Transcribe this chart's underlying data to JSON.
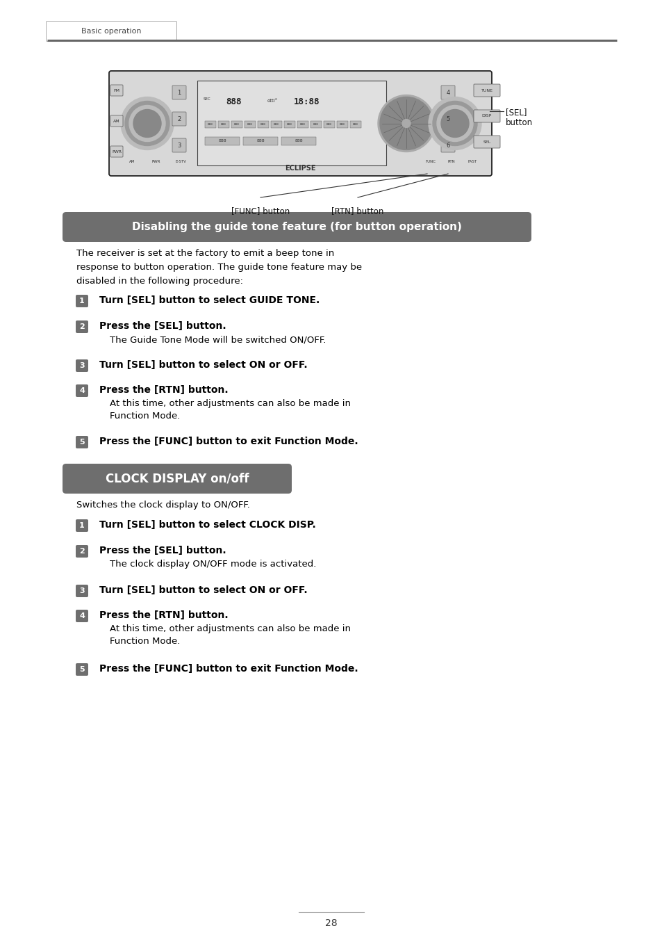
{
  "page_bg": "#ffffff",
  "header_tab_text": "Basic operation",
  "header_tab_bg": "#ffffff",
  "header_tab_border": "#aaaaaa",
  "header_line_color": "#666666",
  "section1_banner_text": "Disabling the guide tone feature (for button operation)",
  "section1_banner_bg": "#6e6e6e",
  "section1_banner_text_color": "#ffffff",
  "section2_banner_text": "CLOCK DISPLAY on/off",
  "section2_banner_bg": "#6e6e6e",
  "section2_banner_text_color": "#ffffff",
  "body_text_color": "#000000",
  "badge_bg": "#6e6e6e",
  "intro1_lines": [
    "The receiver is set at the factory to emit a beep tone in",
    "response to button operation. The guide tone feature may be",
    "disabled in the following procedure:"
  ],
  "steps1": [
    {
      "num": "1",
      "bold": "Turn [SEL] button to select GUIDE TONE.",
      "normal": ""
    },
    {
      "num": "2",
      "bold": "Press the [SEL] button.",
      "normal": "The Guide Tone Mode will be switched ON/OFF."
    },
    {
      "num": "3",
      "bold": "Turn [SEL] button to select ON or OFF.",
      "normal": ""
    },
    {
      "num": "4",
      "bold": "Press the [RTN] button.",
      "normal": "At this time, other adjustments can also be made in\nFunction Mode."
    },
    {
      "num": "5",
      "bold": "Press the [FUNC] button to exit Function Mode.",
      "normal": ""
    }
  ],
  "intro2": "Switches the clock display to ON/OFF.",
  "steps2": [
    {
      "num": "1",
      "bold": "Turn [SEL] button to select CLOCK DISP.",
      "normal": ""
    },
    {
      "num": "2",
      "bold": "Press the [SEL] button.",
      "normal": "The clock display ON/OFF mode is activated."
    },
    {
      "num": "3",
      "bold": "Turn [SEL] button to select ON or OFF.",
      "normal": ""
    },
    {
      "num": "4",
      "bold": "Press the [RTN] button.",
      "normal": "At this time, other adjustments can also be made in\nFunction Mode."
    },
    {
      "num": "5",
      "bold": "Press the [FUNC] button to exit Function Mode.",
      "normal": ""
    }
  ],
  "func_label": "[FUNC] button",
  "rtn_label": "[RTN] button",
  "sel_label": "[SEL]\nbutton",
  "page_number": "28",
  "fig_width": 9.54,
  "fig_height": 13.55
}
